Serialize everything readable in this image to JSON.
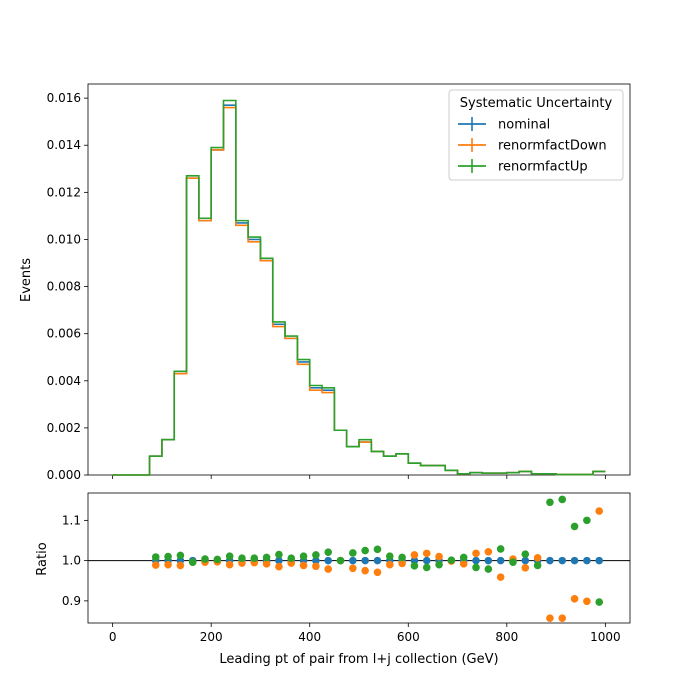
{
  "chart_data": {
    "type": "line",
    "subtype": "step-histogram-with-ratio",
    "xlabel": "Leading pt of pair from l+j collection (GeV)",
    "bin_edges": [
      0,
      25,
      50,
      75,
      100,
      125,
      150,
      175,
      200,
      225,
      250,
      275,
      300,
      325,
      350,
      375,
      400,
      425,
      450,
      475,
      500,
      525,
      550,
      575,
      600,
      625,
      650,
      675,
      700,
      725,
      750,
      775,
      800,
      825,
      850,
      875,
      900,
      925,
      950,
      975,
      1000
    ],
    "main": {
      "ylabel": "Events",
      "xlim": [
        -50,
        1050
      ],
      "ylim": [
        0,
        0.0166
      ],
      "xticks": [
        "0",
        "200",
        "400",
        "600",
        "800",
        "1000"
      ],
      "yticks": [
        "0.000",
        "0.002",
        "0.004",
        "0.006",
        "0.008",
        "0.010",
        "0.012",
        "0.014",
        "0.016"
      ],
      "legend": {
        "title": "Systematic Uncertainty",
        "placement": "top-right"
      },
      "series": [
        {
          "name": "nominal",
          "color": "#1f77b4",
          "values": [
            0,
            0,
            0,
            0.0008,
            0.0015,
            0.0043,
            0.0126,
            0.0108,
            0.0138,
            0.0157,
            0.0107,
            0.01,
            0.0091,
            0.0064,
            0.0058,
            0.0048,
            0.0037,
            0.0036,
            0.0019,
            0.0012,
            0.0014,
            0.001,
            0.0008,
            0.0009,
            0.0005,
            0.0004,
            0.0004,
            0.0002,
            5e-05,
            0.0001,
            8e-05,
            8e-05,
            0.0001,
            0.00015,
            5e-05,
            5e-05,
            2e-05,
            2e-05,
            2e-05,
            0.00015
          ]
        },
        {
          "name": "renormfactDown",
          "color": "#ff7f0e",
          "values": [
            0,
            0,
            0,
            0.0008,
            0.0015,
            0.0043,
            0.0126,
            0.0108,
            0.0138,
            0.0156,
            0.0106,
            0.0099,
            0.0091,
            0.0063,
            0.0058,
            0.0047,
            0.0036,
            0.0035,
            0.0019,
            0.0012,
            0.0014,
            0.001,
            0.0008,
            0.0009,
            0.0005,
            0.0004,
            0.0004,
            0.0002,
            5e-05,
            0.0001,
            8e-05,
            8e-05,
            0.0001,
            0.00015,
            5e-05,
            5e-05,
            2e-05,
            2e-05,
            2e-05,
            0.00015
          ]
        },
        {
          "name": "renormfactUp",
          "color": "#2ca02c",
          "values": [
            0,
            0,
            0,
            0.0008,
            0.0015,
            0.0044,
            0.0127,
            0.0109,
            0.0139,
            0.0159,
            0.0108,
            0.0101,
            0.0092,
            0.0065,
            0.0059,
            0.0049,
            0.0038,
            0.0037,
            0.0019,
            0.0012,
            0.0015,
            0.001,
            0.0008,
            0.0009,
            0.0005,
            0.0004,
            0.0004,
            0.0002,
            5e-05,
            0.0001,
            8e-05,
            8e-05,
            0.0001,
            0.00015,
            5e-05,
            5e-05,
            2e-05,
            2e-05,
            2e-05,
            0.00015
          ]
        }
      ]
    },
    "ratio": {
      "ylabel": "Ratio",
      "ylim": [
        0.845,
        1.168
      ],
      "yticks": [
        "0.9",
        "1.0",
        "1.1"
      ],
      "reference_line": 1.0,
      "x_centers": [
        87.5,
        112.5,
        137.5,
        162.5,
        187.5,
        212.5,
        237.5,
        262.5,
        287.5,
        312.5,
        337.5,
        362.5,
        387.5,
        412.5,
        437.5,
        462.5,
        487.5,
        512.5,
        537.5,
        562.5,
        587.5,
        612.5,
        637.5,
        662.5,
        687.5,
        712.5,
        737.5,
        762.5,
        787.5,
        812.5,
        837.5,
        862.5,
        887.5,
        912.5,
        937.5,
        962.5,
        987.5
      ],
      "series": [
        {
          "name": "nominal",
          "color": "#1f77b4",
          "values": [
            1,
            1,
            1,
            1,
            1,
            1,
            1,
            1,
            1,
            1,
            1,
            1,
            1,
            1,
            1,
            1,
            1,
            1,
            1,
            1,
            1,
            1,
            1,
            1,
            1,
            1,
            1,
            1,
            1,
            1,
            1,
            1,
            1,
            1,
            1,
            1,
            1
          ]
        },
        {
          "name": "renormfactDown",
          "color": "#ff7f0e",
          "values": [
            0.989,
            0.99,
            0.988,
            0.996,
            0.996,
            0.997,
            0.99,
            0.994,
            0.995,
            0.992,
            0.985,
            0.994,
            0.988,
            0.986,
            0.979,
            1.0,
            0.981,
            0.975,
            0.971,
            0.99,
            0.993,
            1.014,
            1.018,
            1.01,
            0.999,
            0.992,
            1.018,
            1.022,
            0.959,
            1.004,
            0.982,
            1.007,
            0.857,
            0.857,
            0.905,
            0.899,
            1.123
          ]
        },
        {
          "name": "renormfactUp",
          "color": "#2ca02c",
          "values": [
            1.009,
            1.01,
            1.013,
            0.996,
            1.004,
            1.003,
            1.011,
            1.006,
            1.006,
            1.008,
            1.015,
            1.006,
            1.011,
            1.014,
            1.021,
            1.0,
            1.019,
            1.025,
            1.028,
            1.011,
            1.008,
            0.987,
            0.983,
            0.99,
            1.001,
            1.008,
            0.983,
            0.979,
            1.029,
            0.996,
            1.016,
            0.988,
            1.145,
            1.152,
            1.085,
            1.1,
            0.897
          ]
        }
      ]
    }
  }
}
